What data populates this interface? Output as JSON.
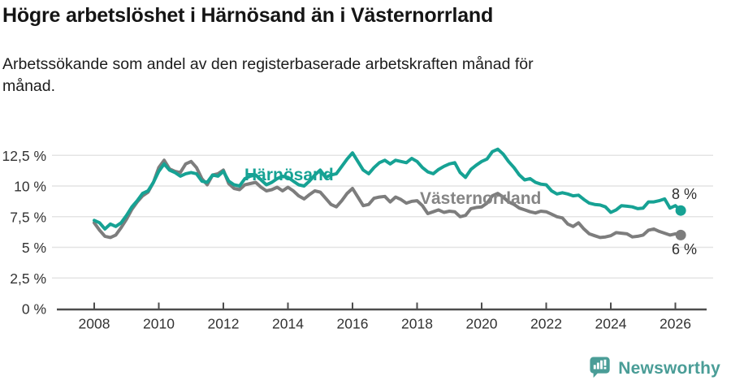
{
  "header": {
    "title": "Högre arbetslöshet i Härnösand än i Västernorrland",
    "subtitle_line1": "Arbetssökande som andel av den registerbaserade arbetskraften månad för",
    "subtitle_line2": "månad."
  },
  "branding": {
    "logo_text": "Newsworthy",
    "logo_icon": "newsworthy-speech-bubble-bar-chart-icon",
    "logo_color": "#4a9d97"
  },
  "colors": {
    "harnosand": "#16a294",
    "vasternorrland": "#7d7d7d",
    "gridline": "#e4e4e4",
    "axis": "#4d4d4d",
    "axis_text": "#333333",
    "end_label_text": "#2e2e2e",
    "background": "#ffffff"
  },
  "chart_data": {
    "type": "line",
    "title": "Högre arbetslöshet i Härnösand än i Västernorrland",
    "subtitle": "Arbetssökande som andel av den registerbaserade arbetskraften månad för månad.",
    "unit": "%",
    "grid": true,
    "legend_position": "inline-labels",
    "x_start_year": 2008,
    "points_per_year": 6,
    "x_axis": {
      "ticks": [
        2008,
        2010,
        2012,
        2014,
        2016,
        2018,
        2020,
        2022,
        2024,
        2026
      ]
    },
    "y_axis": {
      "ticks": [
        0,
        2.5,
        5,
        7.5,
        10,
        12.5
      ],
      "tick_labels": [
        "0 %",
        "2,5 %",
        "5 %",
        "7,5 %",
        "10 %",
        "12,5 %"
      ],
      "range": [
        0,
        13.5
      ]
    },
    "series": [
      {
        "name": "Härnösand",
        "color": "#16a294",
        "end_label": "8 %",
        "end_value": 8,
        "values": [
          7.2,
          7.0,
          6.5,
          6.9,
          6.7,
          7.0,
          7.6,
          8.3,
          8.8,
          9.4,
          9.6,
          10.3,
          11.2,
          11.8,
          11.3,
          11.1,
          10.8,
          11.0,
          11.1,
          11.0,
          10.4,
          10.3,
          10.9,
          10.8,
          11.2,
          10.4,
          10.1,
          10.0,
          10.6,
          10.8,
          10.9,
          10.5,
          10.1,
          10.3,
          10.6,
          10.8,
          10.7,
          10.4,
          10.1,
          10.0,
          10.4,
          10.9,
          11.3,
          10.7,
          10.9,
          11.0,
          11.6,
          12.2,
          12.7,
          12.0,
          11.3,
          11.0,
          11.5,
          11.9,
          12.1,
          11.8,
          12.1,
          12.0,
          11.9,
          12.25,
          12.0,
          11.5,
          11.15,
          11.0,
          11.35,
          11.6,
          11.8,
          11.9,
          11.1,
          10.7,
          11.35,
          11.7,
          12.0,
          12.2,
          12.8,
          13.0,
          12.6,
          12.0,
          11.5,
          10.9,
          10.5,
          10.6,
          10.3,
          10.15,
          10.1,
          9.6,
          9.35,
          9.45,
          9.35,
          9.2,
          9.25,
          8.9,
          8.6,
          8.5,
          8.45,
          8.3,
          7.85,
          8.05,
          8.4,
          8.35,
          8.3,
          8.15,
          8.2,
          8.7,
          8.7,
          8.8,
          8.95,
          8.2,
          8.4,
          8.0
        ]
      },
      {
        "name": "Västernorrland",
        "color": "#7d7d7d",
        "end_label": "6 %",
        "end_value": 6,
        "values": [
          7.0,
          6.4,
          5.9,
          5.8,
          6.0,
          6.6,
          7.3,
          8.1,
          8.7,
          9.2,
          9.5,
          10.3,
          11.5,
          12.1,
          11.4,
          11.2,
          11.1,
          11.8,
          12.0,
          11.5,
          10.6,
          10.1,
          10.9,
          11.0,
          11.3,
          10.2,
          9.8,
          9.7,
          10.1,
          10.2,
          10.3,
          9.9,
          9.6,
          9.7,
          9.9,
          9.6,
          9.9,
          9.6,
          9.2,
          8.95,
          9.3,
          9.6,
          9.5,
          9.0,
          8.5,
          8.3,
          8.8,
          9.4,
          9.8,
          9.1,
          8.4,
          8.5,
          9.0,
          9.1,
          9.15,
          8.7,
          9.1,
          8.9,
          8.6,
          8.75,
          8.8,
          8.4,
          7.75,
          7.9,
          8.05,
          7.85,
          7.95,
          7.9,
          7.5,
          7.6,
          8.15,
          8.25,
          8.3,
          8.6,
          9.2,
          9.4,
          9.1,
          8.7,
          8.5,
          8.2,
          8.05,
          7.9,
          7.8,
          7.95,
          7.9,
          7.7,
          7.5,
          7.4,
          6.9,
          6.7,
          7.0,
          6.5,
          6.1,
          5.95,
          5.8,
          5.85,
          5.95,
          6.2,
          6.15,
          6.1,
          5.85,
          5.9,
          6.0,
          6.4,
          6.5,
          6.3,
          6.15,
          6.0,
          6.1,
          6.0
        ]
      }
    ]
  }
}
